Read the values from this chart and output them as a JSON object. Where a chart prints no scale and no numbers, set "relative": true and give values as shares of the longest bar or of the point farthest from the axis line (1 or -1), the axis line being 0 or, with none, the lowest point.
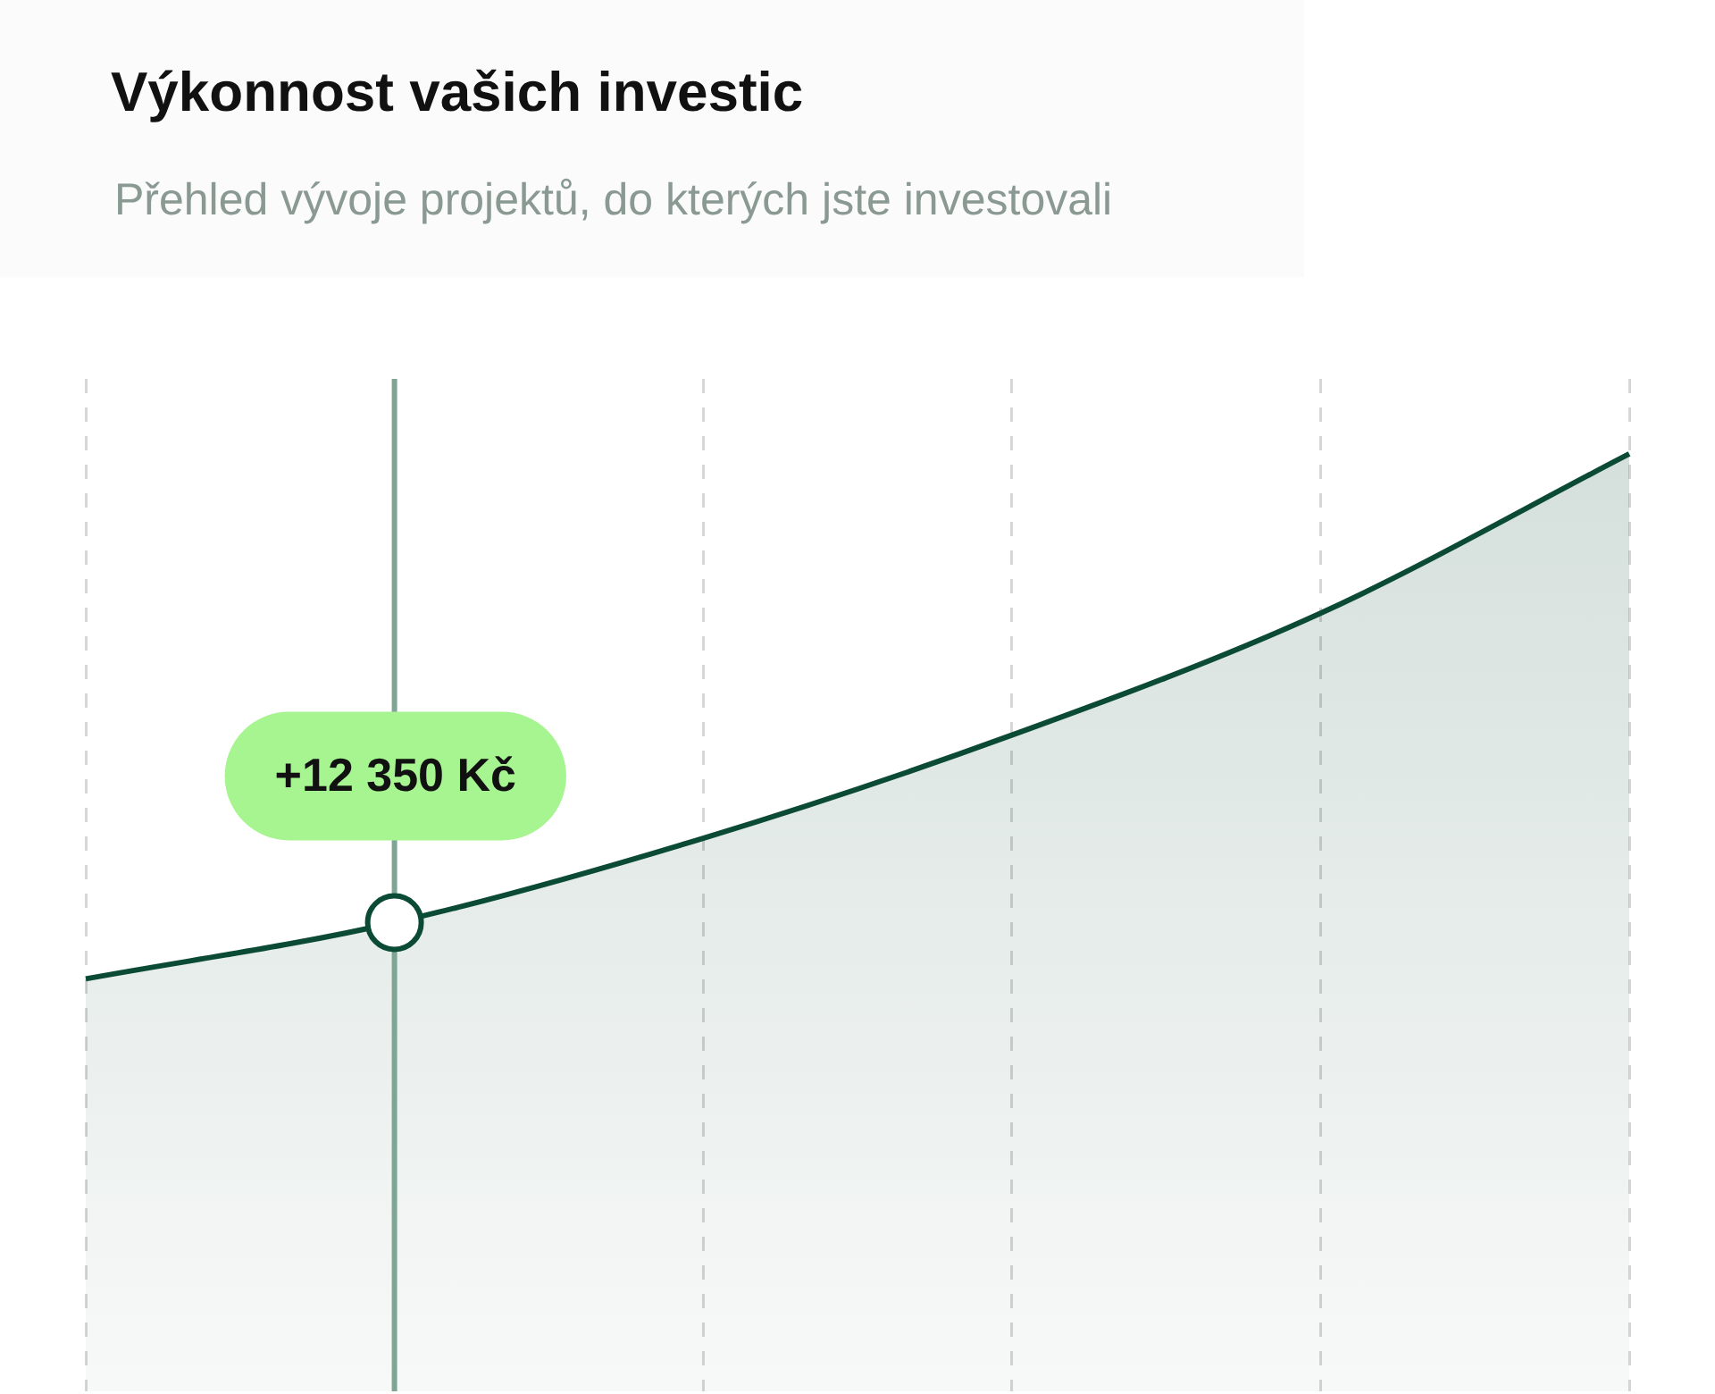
{
  "chart_data": {
    "type": "area",
    "title": "Výkonnost vašich investic",
    "subtitle": "Přehled vývoje projektů, do kterých jste investovali",
    "categories": [
      null,
      null,
      null,
      null,
      null,
      null
    ],
    "relative": true,
    "series": [
      {
        "color": "#0b4a35",
        "values": [
          0.44,
          0.5,
          0.59,
          0.7,
          0.83,
          1.0
        ]
      }
    ],
    "annotations": [
      {
        "text": "+12 350 Kč",
        "y": 0.5
      }
    ],
    "grid": "x",
    "legend": false
  }
}
